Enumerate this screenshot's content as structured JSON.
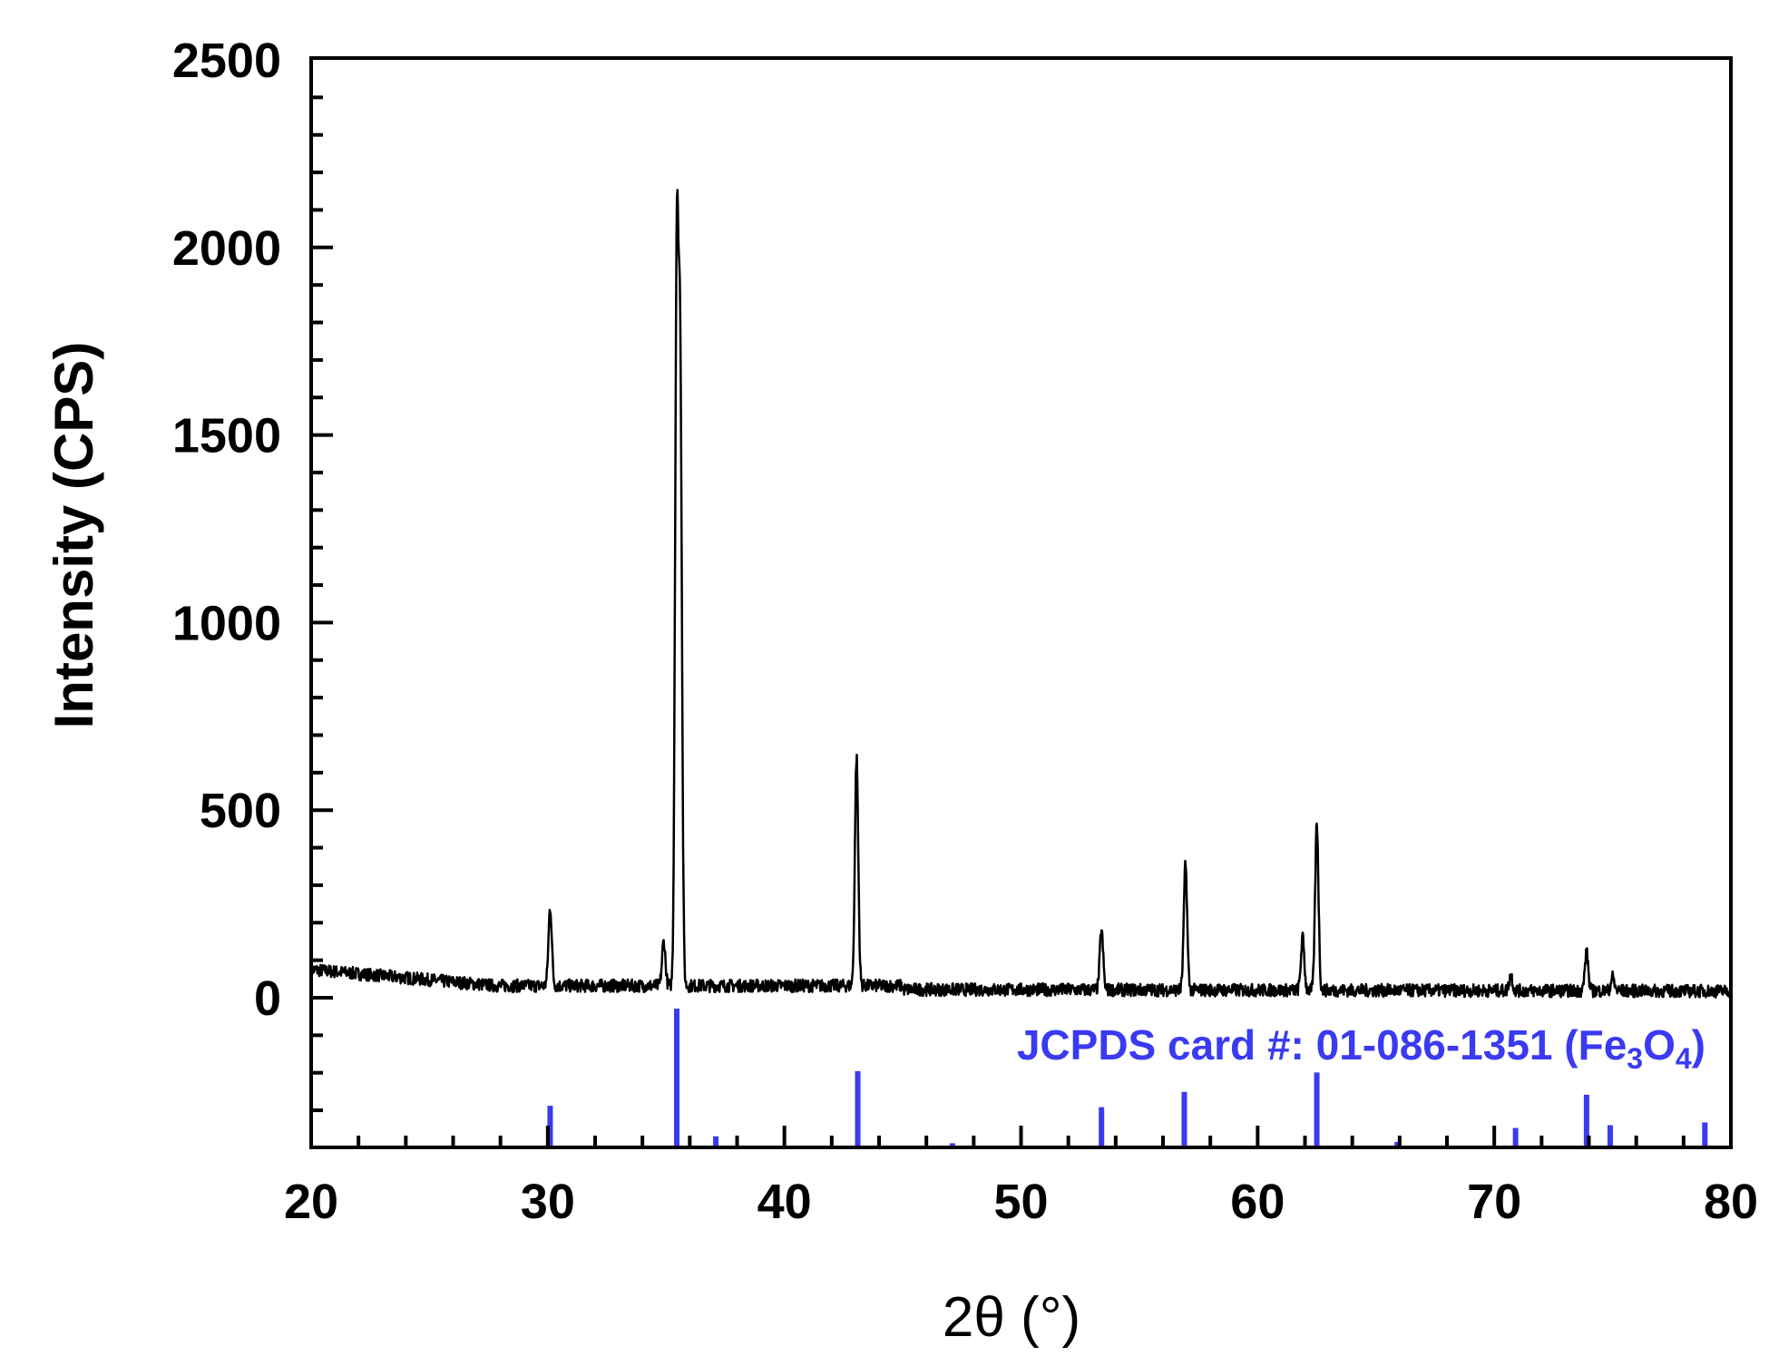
{
  "chart_data": {
    "type": "line",
    "xlabel": "2θ (°)",
    "ylabel": "Intensity (CPS)",
    "xlim": [
      20,
      80
    ],
    "ylim": [
      -400,
      2500
    ],
    "x_ticks": [
      "20",
      "30",
      "40",
      "50",
      "60",
      "70",
      "80"
    ],
    "y_ticks": [
      "0",
      "500",
      "1000",
      "1500",
      "2000",
      "2500"
    ],
    "grid": false,
    "colors": {
      "pattern": "#000000",
      "reference": "#3a3af2"
    },
    "peaks": [
      {
        "x": 30.1,
        "y": 240
      },
      {
        "x": 34.9,
        "y": 150
      },
      {
        "x": 35.45,
        "y": 1930
      },
      {
        "x": 35.6,
        "y": 1620
      },
      {
        "x": 43.05,
        "y": 640
      },
      {
        "x": 53.4,
        "y": 180
      },
      {
        "x": 56.95,
        "y": 355
      },
      {
        "x": 61.9,
        "y": 160
      },
      {
        "x": 62.5,
        "y": 465
      },
      {
        "x": 70.7,
        "y": 60
      },
      {
        "x": 73.9,
        "y": 120
      },
      {
        "x": 75.0,
        "y": 55
      }
    ],
    "reference": {
      "label_prefix": "JCPDS card #: 01-086-1351 (Fe",
      "label_sub1": "3",
      "label_mid": "O",
      "label_sub2": "4",
      "label_suffix": ")",
      "lines": [
        {
          "x": 30.1,
          "intensity": 30
        },
        {
          "x": 35.45,
          "intensity": 100
        },
        {
          "x": 37.1,
          "intensity": 8
        },
        {
          "x": 43.1,
          "intensity": 55
        },
        {
          "x": 47.1,
          "intensity": 3
        },
        {
          "x": 53.4,
          "intensity": 29
        },
        {
          "x": 56.9,
          "intensity": 40
        },
        {
          "x": 62.5,
          "intensity": 54
        },
        {
          "x": 65.9,
          "intensity": 4
        },
        {
          "x": 70.9,
          "intensity": 14
        },
        {
          "x": 73.9,
          "intensity": 38
        },
        {
          "x": 74.9,
          "intensity": 16
        },
        {
          "x": 78.9,
          "intensity": 18
        }
      ]
    }
  }
}
